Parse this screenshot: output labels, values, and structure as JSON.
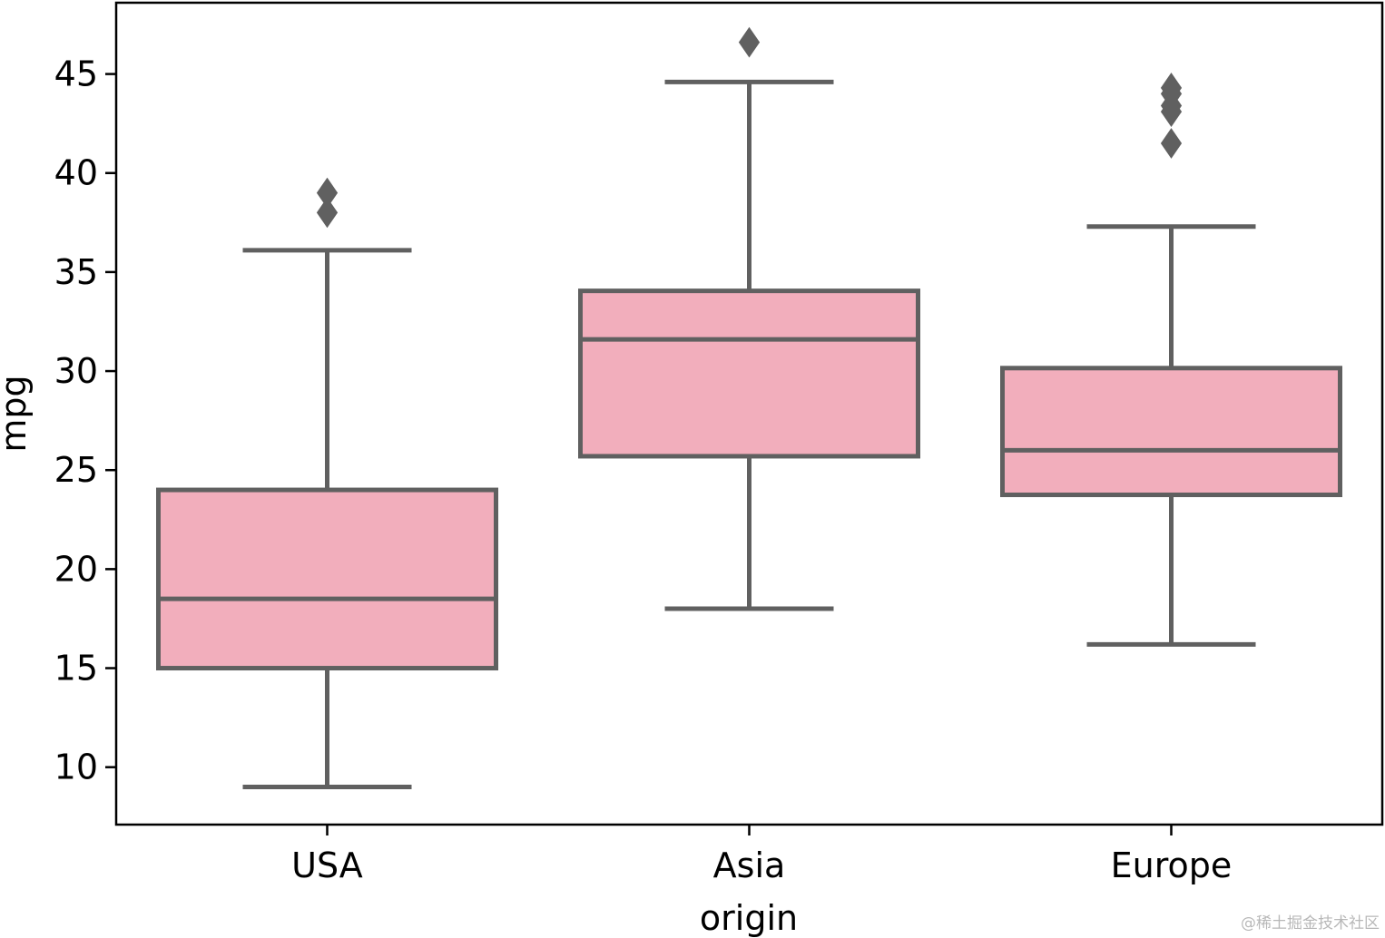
{
  "chart_data": {
    "type": "boxplot",
    "xlabel": "origin",
    "ylabel": "mpg",
    "ylim": [
      7.1,
      48.6
    ],
    "yticks": [
      10,
      15,
      20,
      25,
      30,
      35,
      40,
      45
    ],
    "grid": false,
    "categories": [
      "USA",
      "Asia",
      "Europe"
    ],
    "boxes": [
      {
        "category": "USA",
        "whisker_low": 9.0,
        "q1": 15.0,
        "median": 18.5,
        "q3": 24.0,
        "whisker_high": 36.1,
        "outliers": [
          38.0,
          39.0
        ]
      },
      {
        "category": "Asia",
        "whisker_low": 18.0,
        "q1": 25.7,
        "median": 31.6,
        "q3": 34.05,
        "whisker_high": 44.6,
        "outliers": [
          46.6
        ]
      },
      {
        "category": "Europe",
        "whisker_low": 16.2,
        "q1": 23.75,
        "median": 26.0,
        "q3": 30.15,
        "whisker_high": 37.3,
        "outliers": [
          41.5,
          43.1,
          43.4,
          44.0,
          44.3
        ]
      }
    ],
    "colors": {
      "box_fill": "#f2aebc",
      "line": "#606060",
      "axis": "#000000"
    }
  },
  "watermark": "@稀土掘金技术社区"
}
